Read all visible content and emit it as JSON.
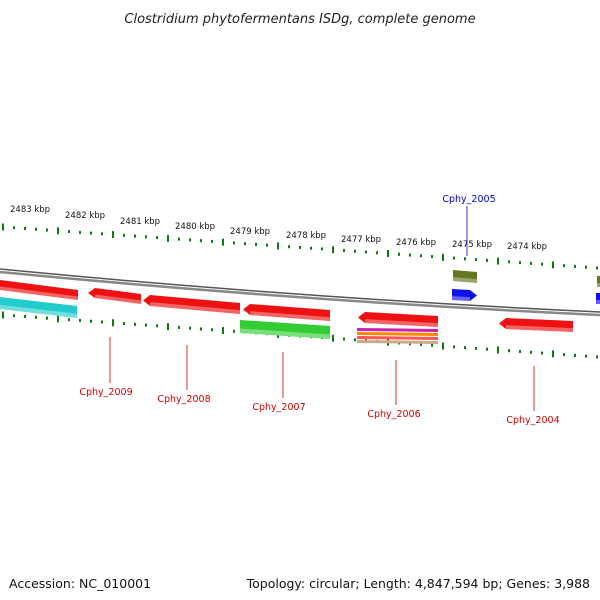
{
  "title": "Clostridium phytofermentans ISDg, complete genome",
  "footer": {
    "accession": "Accession: NC_010001",
    "topology": "Topology: circular; Length: 4,847,594 bp; Genes: 3,988"
  },
  "colors": {
    "red": "#ee1111",
    "cyan": "#22cccc",
    "green": "#33cc33",
    "olive": "#667722",
    "blue": "#1111ee",
    "magenta": "#cc22aa",
    "orange": "#ff8800",
    "tick": "#117711",
    "backbone": "#888888",
    "label_red": "#cc0000",
    "label_blue": "#0000cc"
  },
  "kbp_labels": [
    "2483 kbp",
    "2482 kbp",
    "2481 kbp",
    "2480 kbp",
    "2479 kbp",
    "2478 kbp",
    "2477 kbp",
    "2476 kbp",
    "2475 kbp",
    "2474 kbp"
  ],
  "gene_labels": [
    {
      "name": "Cphy_2009",
      "color": "label_red"
    },
    {
      "name": "Cphy_2008",
      "color": "label_red"
    },
    {
      "name": "Cphy_2007",
      "color": "label_red"
    },
    {
      "name": "Cphy_2006",
      "color": "label_red"
    },
    {
      "name": "Cphy_2004",
      "color": "label_red"
    },
    {
      "name": "Cphy_2005",
      "color": "label_blue"
    }
  ]
}
